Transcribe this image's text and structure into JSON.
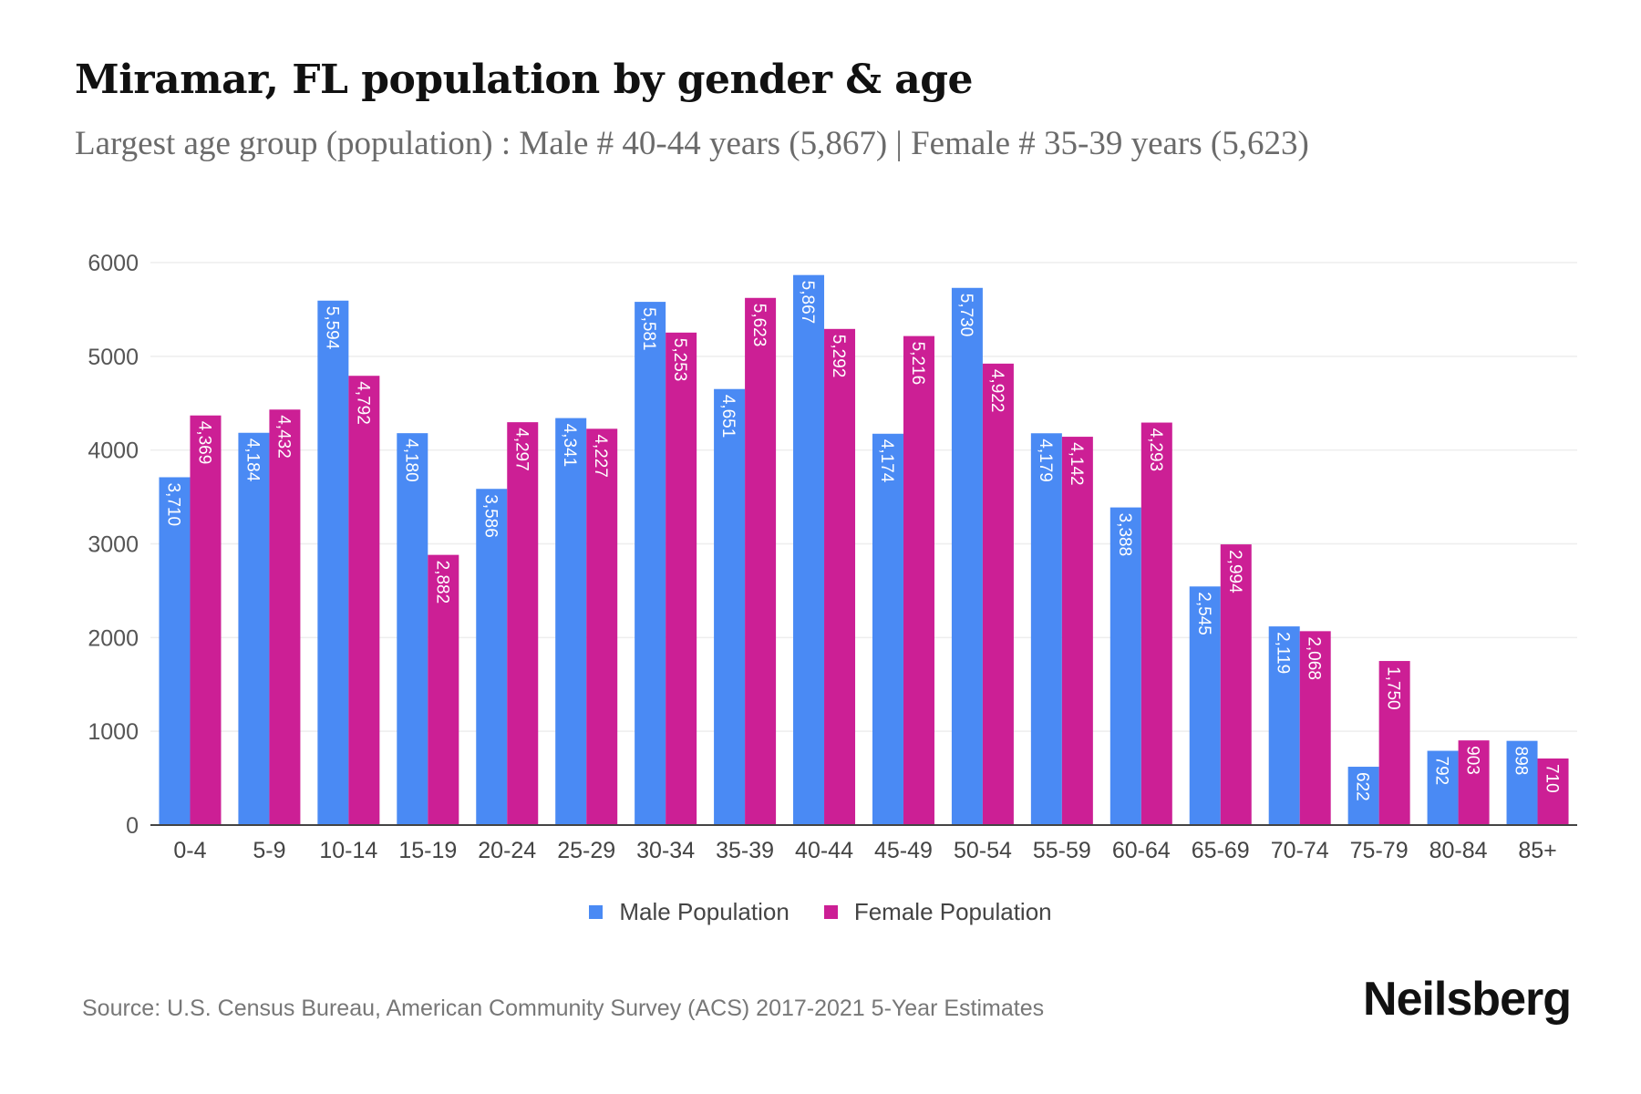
{
  "title": "Miramar, FL population by gender & age",
  "subtitle": "Largest age group (population) : Male # 40-44 years (5,867) | Female # 35-39 years (5,623)",
  "source": "Source: U.S. Census Bureau, American Community Survey (ACS) 2017-2021 5-Year Estimates",
  "brand": "Neilsberg",
  "colors": {
    "male": "#4a8af4",
    "female": "#cc1f95",
    "grid": "#eeeeee",
    "axis": "#444444"
  },
  "chart_data": {
    "type": "bar",
    "title": "Miramar, FL population by gender & age",
    "xlabel": "",
    "ylabel": "",
    "ylim": [
      0,
      6000
    ],
    "yticks": [
      0,
      1000,
      2000,
      3000,
      4000,
      5000,
      6000
    ],
    "grid": true,
    "legend_position": "bottom",
    "categories": [
      "0-4",
      "5-9",
      "10-14",
      "15-19",
      "20-24",
      "25-29",
      "30-34",
      "35-39",
      "40-44",
      "45-49",
      "50-54",
      "55-59",
      "60-64",
      "65-69",
      "70-74",
      "75-79",
      "80-84",
      "85+"
    ],
    "series": [
      {
        "name": "Male Population",
        "values": [
          3710,
          4184,
          5594,
          4180,
          3586,
          4341,
          5581,
          4651,
          5867,
          4174,
          5730,
          4179,
          3388,
          2545,
          2119,
          622,
          792,
          898
        ],
        "labels": [
          "3,710",
          "4,184",
          "5,594",
          "4,180",
          "3,586",
          "4,341",
          "5,581",
          "4,651",
          "5,867",
          "4,174",
          "5,730",
          "4,179",
          "3,388",
          "2,545",
          "2,119",
          "622",
          "792",
          "898"
        ]
      },
      {
        "name": "Female Population",
        "values": [
          4369,
          4432,
          4792,
          2882,
          4297,
          4227,
          5253,
          5623,
          5292,
          5216,
          4922,
          4142,
          4293,
          2994,
          2068,
          1750,
          903,
          710
        ],
        "labels": [
          "4,369",
          "4,432",
          "4,792",
          "2,882",
          "4,297",
          "4,227",
          "5,253",
          "5,623",
          "5,292",
          "5,216",
          "4,922",
          "4,142",
          "4,293",
          "2,994",
          "2,068",
          "1,750",
          "903",
          "710"
        ]
      }
    ]
  }
}
